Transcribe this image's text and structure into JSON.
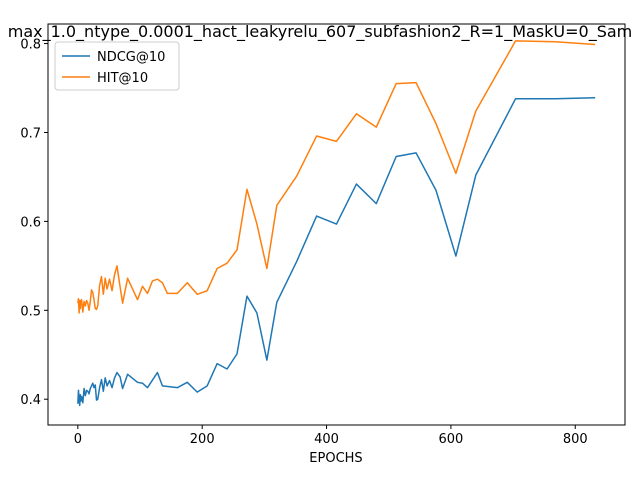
{
  "chart_data": {
    "type": "line",
    "title": "max_1.0_ntype_0.0001_hact_leakyrelu_607_subfashion2_R=1_MaskU=0_Sam",
    "xlabel": "EPOCHS",
    "ylabel": "",
    "xlim": [
      -48,
      880
    ],
    "ylim": [
      0.371,
      0.822
    ],
    "xticks": [
      0,
      200,
      400,
      600,
      800
    ],
    "yticks": [
      0.4,
      0.5,
      0.6,
      0.7,
      0.8
    ],
    "xtick_labels": [
      "0",
      "200",
      "400",
      "600",
      "800"
    ],
    "ytick_labels": [
      "0.4",
      "0.5",
      "0.6",
      "0.7",
      "0.8"
    ],
    "grid": false,
    "legend_position": "top-left",
    "series": [
      {
        "name": "NDCG@10",
        "color": "#1f77b4",
        "points": [
          [
            0,
            0.395
          ],
          [
            1,
            0.41
          ],
          [
            2,
            0.4
          ],
          [
            3,
            0.393
          ],
          [
            4,
            0.405
          ],
          [
            5,
            0.398
          ],
          [
            6,
            0.403
          ],
          [
            8,
            0.396
          ],
          [
            10,
            0.412
          ],
          [
            12,
            0.404
          ],
          [
            14,
            0.41
          ],
          [
            16,
            0.409
          ],
          [
            18,
            0.406
          ],
          [
            20,
            0.412
          ],
          [
            22,
            0.415
          ],
          [
            24,
            0.418
          ],
          [
            26,
            0.413
          ],
          [
            28,
            0.416
          ],
          [
            30,
            0.399
          ],
          [
            32,
            0.4
          ],
          [
            35,
            0.413
          ],
          [
            38,
            0.422
          ],
          [
            41,
            0.409
          ],
          [
            44,
            0.424
          ],
          [
            47,
            0.415
          ],
          [
            51,
            0.421
          ],
          [
            55,
            0.413
          ],
          [
            59,
            0.424
          ],
          [
            63,
            0.43
          ],
          [
            68,
            0.425
          ],
          [
            72,
            0.412
          ],
          [
            80,
            0.428
          ],
          [
            96,
            0.419
          ],
          [
            104,
            0.418
          ],
          [
            112,
            0.413
          ],
          [
            128,
            0.43
          ],
          [
            136,
            0.415
          ],
          [
            160,
            0.413
          ],
          [
            176,
            0.419
          ],
          [
            192,
            0.408
          ],
          [
            208,
            0.415
          ],
          [
            224,
            0.44
          ],
          [
            240,
            0.434
          ],
          [
            256,
            0.451
          ],
          [
            272,
            0.516
          ],
          [
            288,
            0.497
          ],
          [
            304,
            0.444
          ],
          [
            320,
            0.509
          ],
          [
            352,
            0.555
          ],
          [
            384,
            0.606
          ],
          [
            416,
            0.597
          ],
          [
            448,
            0.642
          ],
          [
            480,
            0.62
          ],
          [
            512,
            0.673
          ],
          [
            544,
            0.677
          ],
          [
            576,
            0.635
          ],
          [
            608,
            0.561
          ],
          [
            640,
            0.652
          ],
          [
            704,
            0.738
          ],
          [
            768,
            0.738
          ],
          [
            832,
            0.739
          ]
        ]
      },
      {
        "name": "HIT@10",
        "color": "#ff7f0e",
        "points": [
          [
            0,
            0.508
          ],
          [
            1,
            0.513
          ],
          [
            2,
            0.497
          ],
          [
            3,
            0.511
          ],
          [
            4,
            0.502
          ],
          [
            5,
            0.511
          ],
          [
            6,
            0.512
          ],
          [
            8,
            0.498
          ],
          [
            10,
            0.51
          ],
          [
            12,
            0.505
          ],
          [
            14,
            0.511
          ],
          [
            16,
            0.508
          ],
          [
            18,
            0.5
          ],
          [
            20,
            0.51
          ],
          [
            22,
            0.523
          ],
          [
            24,
            0.52
          ],
          [
            26,
            0.512
          ],
          [
            28,
            0.502
          ],
          [
            30,
            0.501
          ],
          [
            32,
            0.505
          ],
          [
            35,
            0.528
          ],
          [
            38,
            0.538
          ],
          [
            41,
            0.518
          ],
          [
            44,
            0.536
          ],
          [
            47,
            0.524
          ],
          [
            51,
            0.535
          ],
          [
            55,
            0.522
          ],
          [
            59,
            0.54
          ],
          [
            63,
            0.55
          ],
          [
            68,
            0.526
          ],
          [
            72,
            0.508
          ],
          [
            80,
            0.536
          ],
          [
            96,
            0.512
          ],
          [
            104,
            0.527
          ],
          [
            112,
            0.519
          ],
          [
            120,
            0.533
          ],
          [
            128,
            0.535
          ],
          [
            136,
            0.531
          ],
          [
            144,
            0.519
          ],
          [
            160,
            0.519
          ],
          [
            176,
            0.531
          ],
          [
            192,
            0.518
          ],
          [
            208,
            0.522
          ],
          [
            224,
            0.547
          ],
          [
            240,
            0.553
          ],
          [
            256,
            0.568
          ],
          [
            272,
            0.636
          ],
          [
            288,
            0.597
          ],
          [
            304,
            0.547
          ],
          [
            320,
            0.618
          ],
          [
            352,
            0.651
          ],
          [
            384,
            0.696
          ],
          [
            416,
            0.69
          ],
          [
            448,
            0.721
          ],
          [
            480,
            0.706
          ],
          [
            512,
            0.755
          ],
          [
            544,
            0.756
          ],
          [
            576,
            0.71
          ],
          [
            608,
            0.654
          ],
          [
            640,
            0.724
          ],
          [
            704,
            0.803
          ],
          [
            768,
            0.802
          ],
          [
            832,
            0.799
          ]
        ]
      }
    ]
  }
}
